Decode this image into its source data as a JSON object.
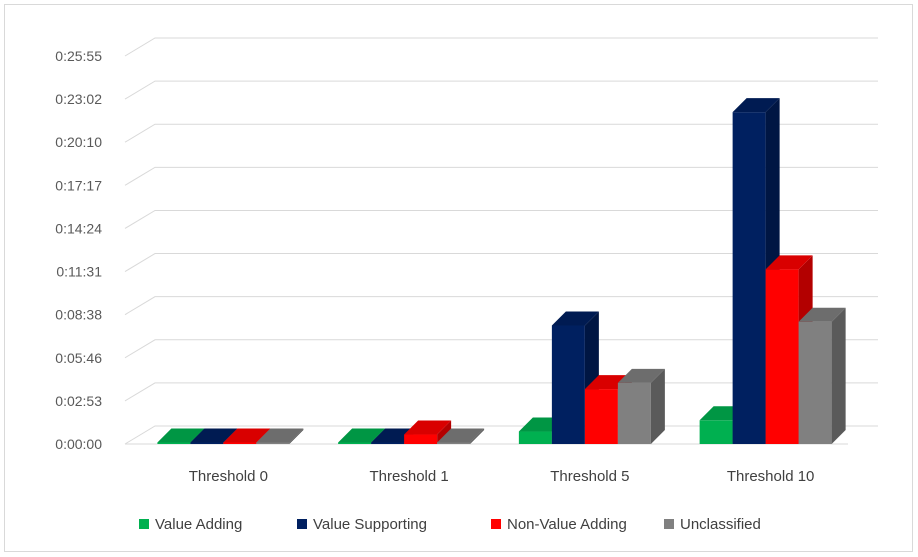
{
  "chart_data": {
    "type": "bar",
    "style": "3d-clustered-column",
    "categories": [
      "Threshold 0",
      "Threshold 1",
      "Threshold 5",
      "Threshold 10"
    ],
    "y_tick_labels": [
      "0:00:00",
      "0:02:53",
      "0:05:46",
      "0:08:38",
      "0:11:31",
      "0:14:24",
      "0:17:17",
      "0:20:10",
      "0:23:02",
      "0:25:55"
    ],
    "ylim_seconds": [
      0,
      1555
    ],
    "y_unit": "seconds (displayed as h:mm:ss)",
    "grid": true,
    "legend_position": "bottom",
    "series": [
      {
        "name": "Value Adding",
        "color": "#00b050",
        "values": [
          0,
          0,
          50,
          95
        ]
      },
      {
        "name": "Value Supporting",
        "color": "#002060",
        "values": [
          0,
          0,
          475,
          1330
        ]
      },
      {
        "name": "Non-Value Adding",
        "color": "#ff0000",
        "values": [
          0,
          38,
          220,
          700
        ]
      },
      {
        "name": "Unclassified",
        "color": "#808080",
        "values": [
          0,
          0,
          245,
          490
        ]
      }
    ]
  }
}
